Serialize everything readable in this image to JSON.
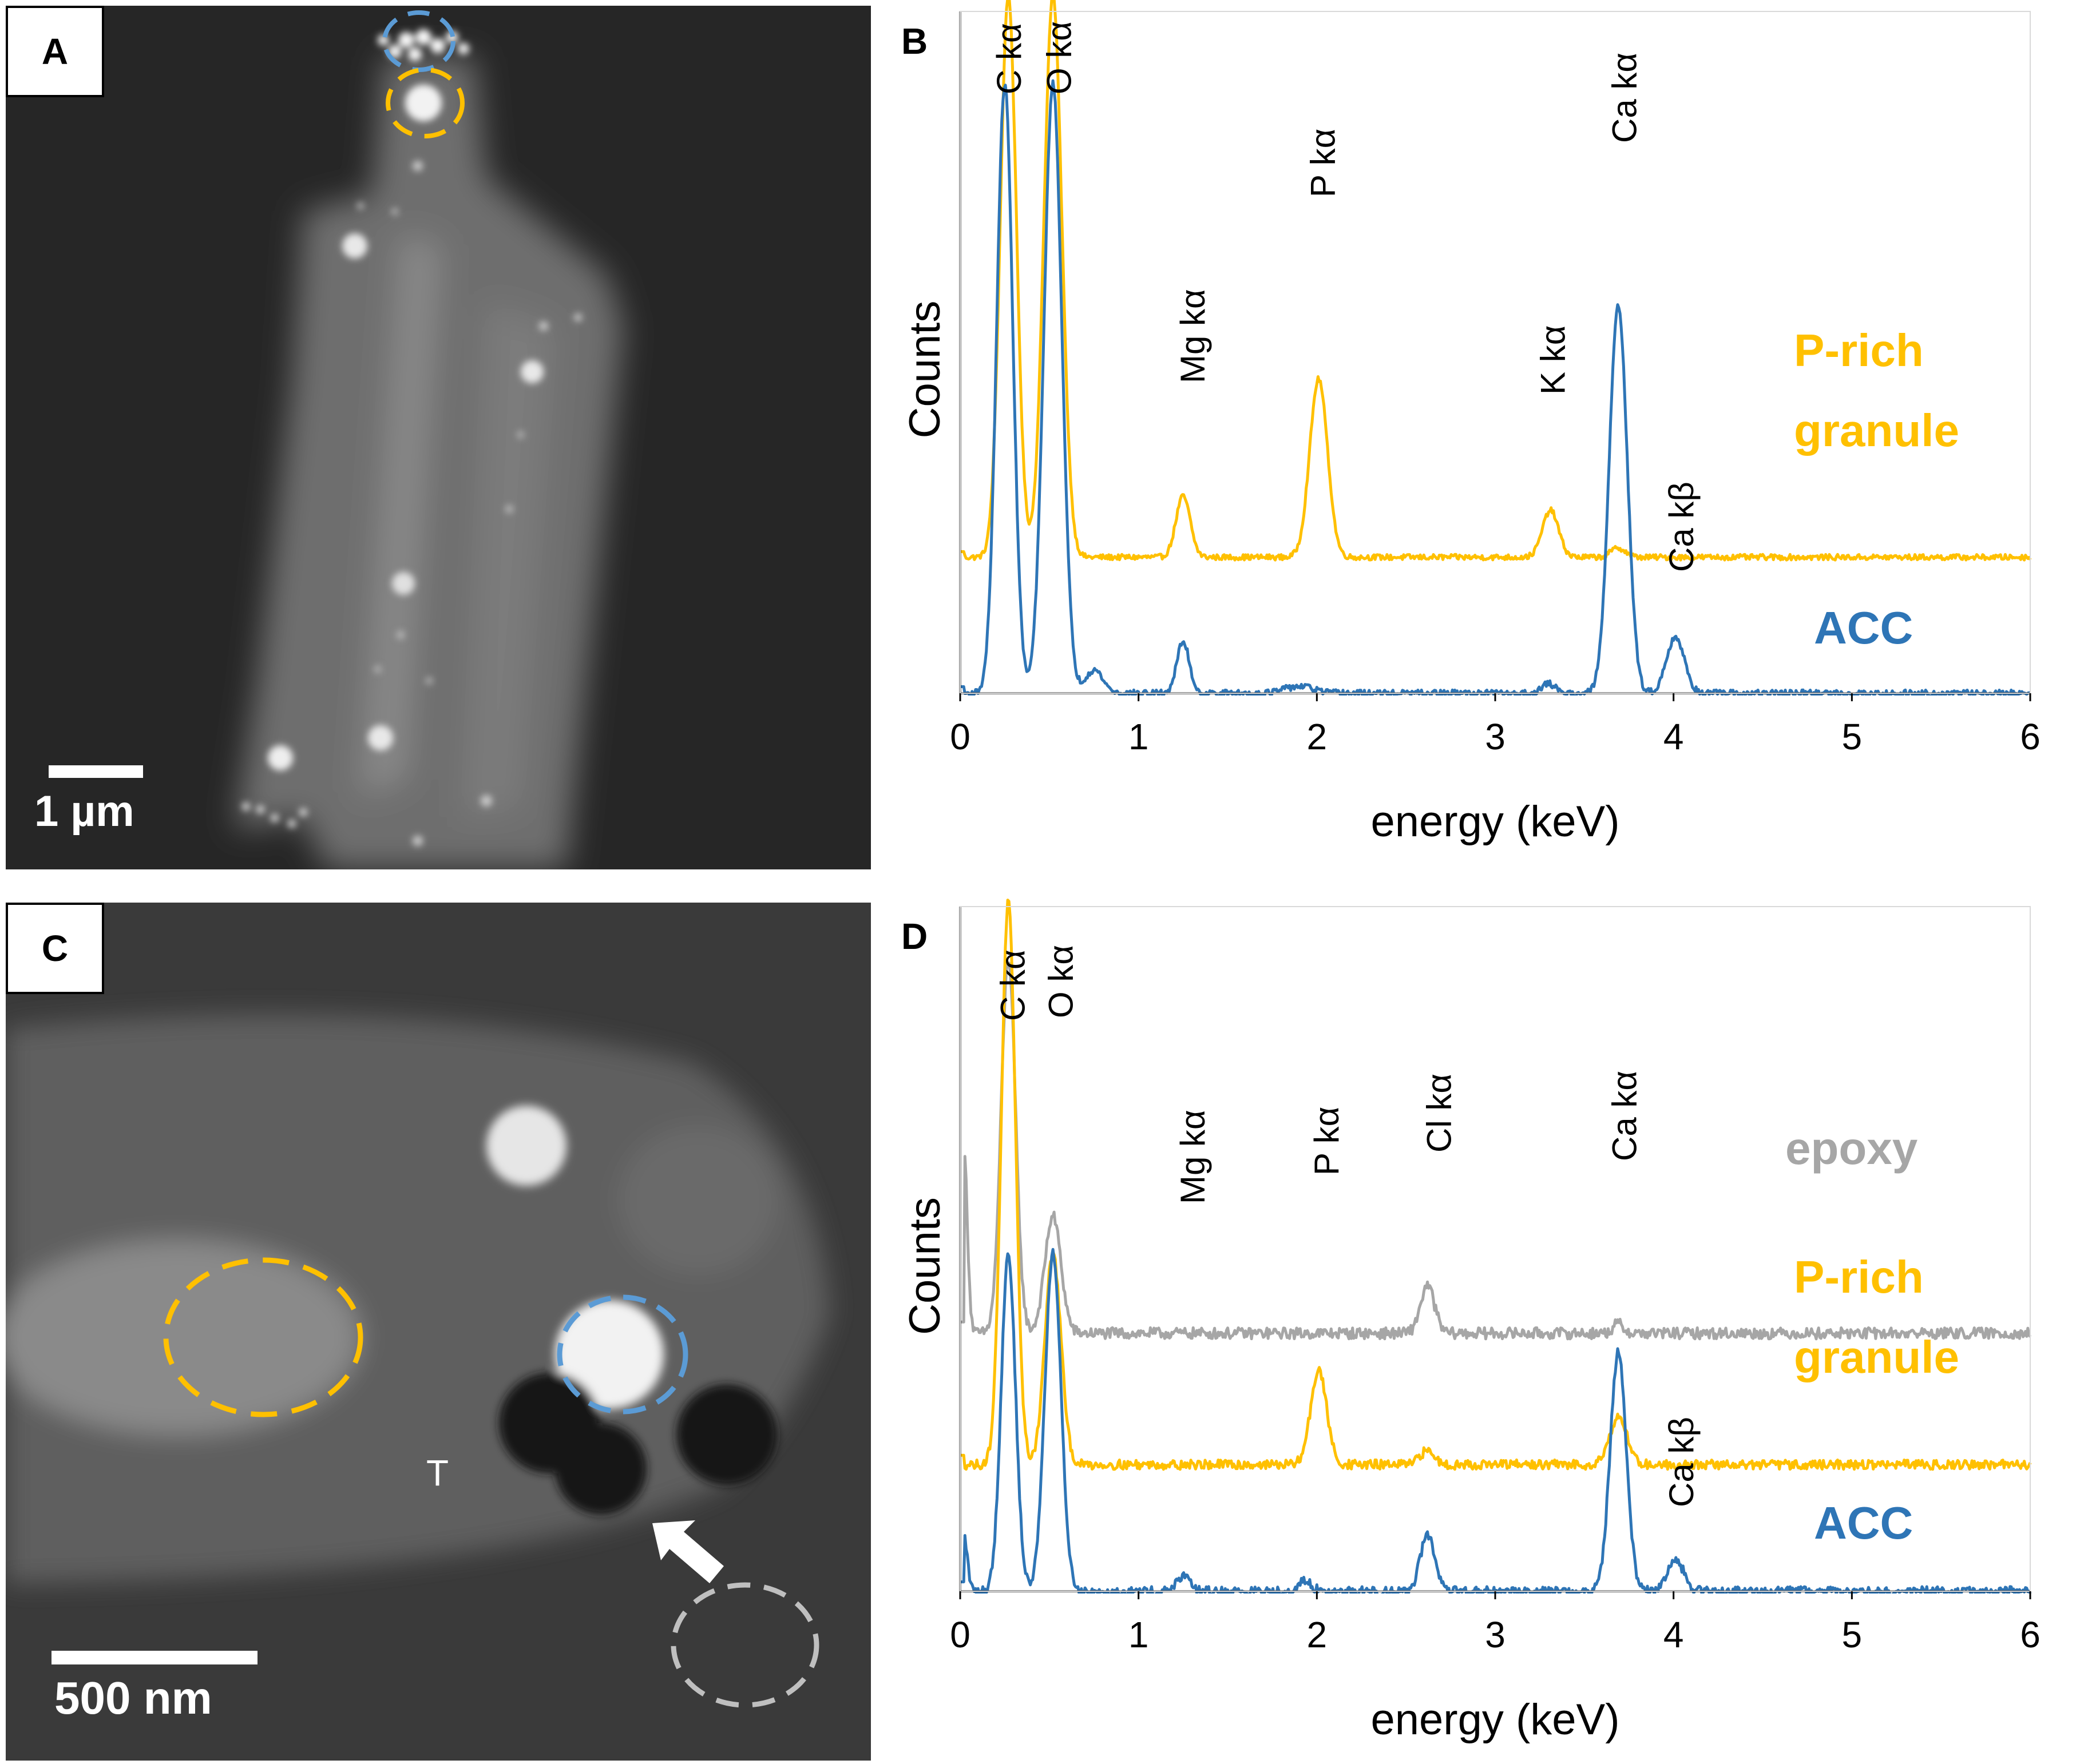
{
  "panels": {
    "a": {
      "letter": "A",
      "scale_bar_label": "1 µm"
    },
    "b": {
      "letter": "B"
    },
    "c": {
      "letter": "C",
      "scale_bar_label": "500 nm",
      "region_label": "T"
    },
    "d": {
      "letter": "D"
    }
  },
  "colors": {
    "acc": "#2E75B6",
    "p_rich": "#FFC000",
    "epoxy": "#A6A6A6",
    "axis": "#000000",
    "micrograph_bg_a": "#262626",
    "micrograph_bg_c": "#3a3a3a"
  },
  "chart_data": [
    {
      "id": "B",
      "type": "line",
      "xlabel": "energy (keV)",
      "ylabel": "Counts",
      "xlim": [
        0,
        6
      ],
      "x_ticks": [
        "0",
        "1",
        "2",
        "3",
        "4",
        "5",
        "6"
      ],
      "y_ticks_shown": false,
      "series": [
        {
          "name": "P-rich granule",
          "label_lines": [
            "P-rich",
            "granule"
          ],
          "color": "#FFC000",
          "baseline": 0.29,
          "noise": 0.006,
          "peaks": [
            [
              0.27,
              1.2,
              0.045
            ],
            [
              0.52,
              1.2,
              0.05
            ],
            [
              1.25,
              0.13,
              0.04
            ],
            [
              2.01,
              0.38,
              0.05
            ],
            [
              3.31,
              0.1,
              0.045
            ],
            [
              3.69,
              0.02,
              0.04
            ]
          ]
        },
        {
          "name": "ACC",
          "label_lines": [
            "ACC"
          ],
          "color": "#2E75B6",
          "baseline": 0.0,
          "noise": 0.007,
          "peaks": [
            [
              0.25,
              1.3,
              0.045
            ],
            [
              0.52,
              1.3,
              0.05
            ],
            [
              0.75,
              0.05,
              0.05
            ],
            [
              1.25,
              0.11,
              0.035
            ],
            [
              1.9,
              0.015,
              0.08
            ],
            [
              3.3,
              0.02,
              0.04
            ],
            [
              3.69,
              0.83,
              0.05
            ],
            [
              4.01,
              0.12,
              0.05
            ]
          ]
        }
      ],
      "peak_labels": [
        {
          "text": "C kα",
          "x": 0.27
        },
        {
          "text": "O kα",
          "x": 0.55
        },
        {
          "text": "Mg kα",
          "x": 1.3
        },
        {
          "text": "P kα",
          "x": 2.03
        },
        {
          "text": "K kα",
          "x": 3.32
        },
        {
          "text": "Ca kα",
          "x": 3.72
        },
        {
          "text": "Ca kβ",
          "x": 4.04
        }
      ]
    },
    {
      "id": "D",
      "type": "line",
      "xlabel": "energy (keV)",
      "ylabel": "Counts",
      "xlim": [
        0,
        6
      ],
      "x_ticks": [
        "0",
        "1",
        "2",
        "3",
        "4",
        "5",
        "6"
      ],
      "y_ticks_shown": false,
      "series": [
        {
          "name": "epoxy",
          "label_lines": [
            "epoxy"
          ],
          "color": "#A6A6A6",
          "baseline": 0.55,
          "noise": 0.012,
          "peaks": [
            [
              0.02,
              0.4,
              0.02
            ],
            [
              0.27,
              0.8,
              0.04
            ],
            [
              0.52,
              0.25,
              0.045
            ],
            [
              2.62,
              0.1,
              0.04
            ],
            [
              3.69,
              0.02,
              0.03
            ]
          ]
        },
        {
          "name": "P-rich granule",
          "label_lines": [
            "P-rich",
            "granule"
          ],
          "color": "#FFC000",
          "baseline": 0.27,
          "noise": 0.01,
          "peaks": [
            [
              0.27,
              1.2,
              0.04
            ],
            [
              0.52,
              0.45,
              0.045
            ],
            [
              2.01,
              0.2,
              0.045
            ],
            [
              2.62,
              0.03,
              0.04
            ],
            [
              3.69,
              0.1,
              0.05
            ]
          ]
        },
        {
          "name": "ACC",
          "label_lines": [
            "ACC"
          ],
          "color": "#2E75B6",
          "baseline": 0.0,
          "noise": 0.01,
          "peaks": [
            [
              0.02,
              0.12,
              0.02
            ],
            [
              0.27,
              0.72,
              0.04
            ],
            [
              0.52,
              0.72,
              0.045
            ],
            [
              1.25,
              0.03,
              0.04
            ],
            [
              1.93,
              0.02,
              0.04
            ],
            [
              2.62,
              0.12,
              0.04
            ],
            [
              3.69,
              0.51,
              0.045
            ],
            [
              4.01,
              0.07,
              0.045
            ]
          ]
        }
      ],
      "peak_labels": [
        {
          "text": "C kα",
          "x": 0.29
        },
        {
          "text": "O kα",
          "x": 0.56
        },
        {
          "text": "Mg kα",
          "x": 1.3
        },
        {
          "text": "P kα",
          "x": 2.05
        },
        {
          "text": "Cl kα",
          "x": 2.68
        },
        {
          "text": "Ca kα",
          "x": 3.72
        },
        {
          "text": "Ca kβ",
          "x": 4.04
        }
      ]
    }
  ]
}
